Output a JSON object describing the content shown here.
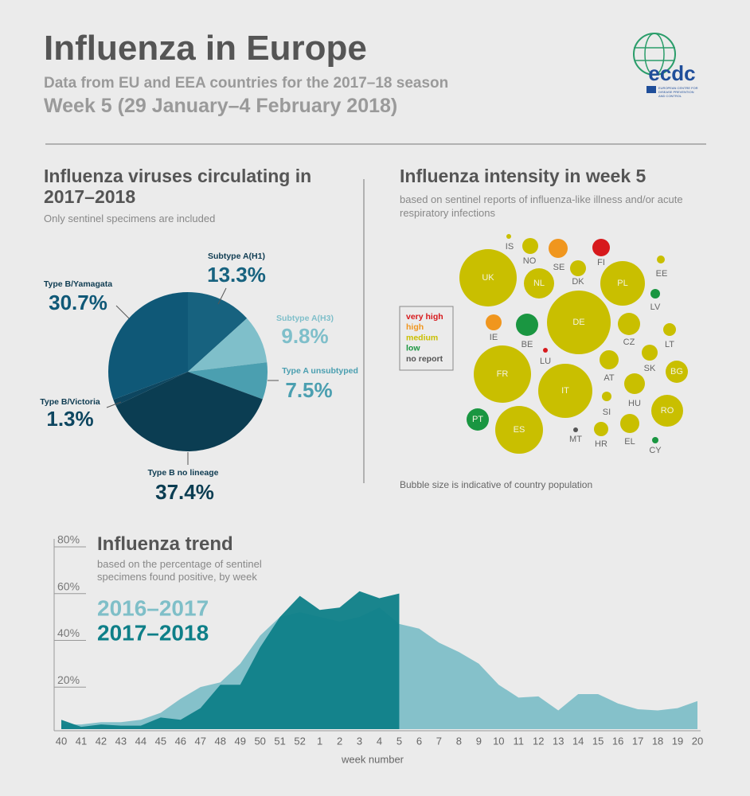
{
  "header": {
    "title": "Influenza in Europe",
    "subtitle": "Data from EU and EEA countries for the 2017–18 season",
    "week": "Week 5 (29 January–4 February 2018)",
    "logo": "ecdc",
    "logo_caption": "EUROPEAN CENTRE FOR DISEASE PREVENTION AND CONTROL"
  },
  "chart_data": [
    {
      "type": "pie",
      "title": "Influenza viruses circulating in 2017–2018",
      "subtitle": "Only sentinel specimens are included",
      "categories": [
        "Subtype A(H1)",
        "Subtype A(H3)",
        "Type A unsubtyped",
        "Type B no lineage",
        "Type B/Victoria",
        "Type B/Yamagata"
      ],
      "values": [
        13.3,
        9.8,
        7.5,
        37.4,
        1.3,
        30.7
      ],
      "value_labels": [
        "13.3%",
        "9.8%",
        "7.5%",
        "37.4%",
        "1.3%",
        "30.7%"
      ],
      "colors": [
        "#17627f",
        "#7fbfca",
        "#4b9fb0",
        "#0b3d52",
        "#0d4660",
        "#0f5877"
      ]
    },
    {
      "type": "bubble",
      "title": "Influenza intensity in week 5",
      "subtitle": "based on sentinel reports of influenza-like illness and/or acute respiratory infections",
      "legend": [
        {
          "name": "very high",
          "color": "#d7191c"
        },
        {
          "name": "high",
          "color": "#f0961e"
        },
        {
          "name": "medium",
          "color": "#c9bf00"
        },
        {
          "name": "low",
          "color": "#1a9641"
        },
        {
          "name": "no report",
          "color": "#555555"
        }
      ],
      "countries": [
        {
          "label": "IS",
          "intensity": "medium"
        },
        {
          "label": "NO",
          "intensity": "medium"
        },
        {
          "label": "SE",
          "intensity": "high"
        },
        {
          "label": "FI",
          "intensity": "very high"
        },
        {
          "label": "UK",
          "intensity": "medium"
        },
        {
          "label": "NL",
          "intensity": "medium"
        },
        {
          "label": "DK",
          "intensity": "medium"
        },
        {
          "label": "PL",
          "intensity": "medium"
        },
        {
          "label": "EE",
          "intensity": "medium"
        },
        {
          "label": "LV",
          "intensity": "low"
        },
        {
          "label": "IE",
          "intensity": "high"
        },
        {
          "label": "BE",
          "intensity": "low"
        },
        {
          "label": "DE",
          "intensity": "medium"
        },
        {
          "label": "CZ",
          "intensity": "medium"
        },
        {
          "label": "LT",
          "intensity": "medium"
        },
        {
          "label": "LU",
          "intensity": "very high"
        },
        {
          "label": "AT",
          "intensity": "medium"
        },
        {
          "label": "SK",
          "intensity": "medium"
        },
        {
          "label": "BG",
          "intensity": "medium"
        },
        {
          "label": "FR",
          "intensity": "medium"
        },
        {
          "label": "IT",
          "intensity": "medium"
        },
        {
          "label": "HU",
          "intensity": "medium"
        },
        {
          "label": "SI",
          "intensity": "medium"
        },
        {
          "label": "RO",
          "intensity": "medium"
        },
        {
          "label": "PT",
          "intensity": "low"
        },
        {
          "label": "ES",
          "intensity": "medium"
        },
        {
          "label": "MT",
          "intensity": "no report"
        },
        {
          "label": "HR",
          "intensity": "medium"
        },
        {
          "label": "EL",
          "intensity": "medium"
        },
        {
          "label": "CY",
          "intensity": "low"
        }
      ],
      "note": "Bubble size is indicative of country population"
    },
    {
      "type": "area",
      "title": "Influenza trend",
      "subtitle": "based on the percentage of sentinel specimens found positive, by week",
      "categories": [
        40,
        41,
        42,
        43,
        44,
        45,
        46,
        47,
        48,
        49,
        50,
        51,
        52,
        1,
        2,
        3,
        4,
        5,
        6,
        7,
        8,
        9,
        10,
        11,
        12,
        13,
        14,
        15,
        16,
        17,
        18,
        19,
        20
      ],
      "x_label": "week number",
      "series": [
        {
          "name": "2016–2017",
          "color": "#7fbfc8",
          "values": [
            2,
            2,
            3,
            3,
            4,
            7,
            13,
            18,
            20,
            28,
            40,
            48,
            50,
            48,
            46,
            48,
            52,
            45,
            43,
            37,
            33,
            28,
            19,
            13.5,
            14,
            8,
            15,
            15,
            11,
            8.5,
            8,
            9,
            12
          ]
        },
        {
          "name": "2017–2018",
          "color": "#0e7f88",
          "values": [
            4,
            1,
            2,
            1.5,
            1.5,
            5,
            4,
            9,
            19,
            19,
            35,
            48,
            57,
            51,
            52,
            59,
            56,
            58,
            null,
            null,
            null,
            null,
            null,
            null,
            null,
            null,
            null,
            null,
            null,
            null,
            null,
            null,
            null
          ]
        }
      ],
      "ylim": [
        0,
        80
      ],
      "yticks": [
        {
          "value": 20,
          "label": "20%"
        },
        {
          "value": 40,
          "label": "40%"
        },
        {
          "value": 60,
          "label": "60%"
        },
        {
          "value": 80,
          "label": "80%"
        }
      ]
    }
  ]
}
